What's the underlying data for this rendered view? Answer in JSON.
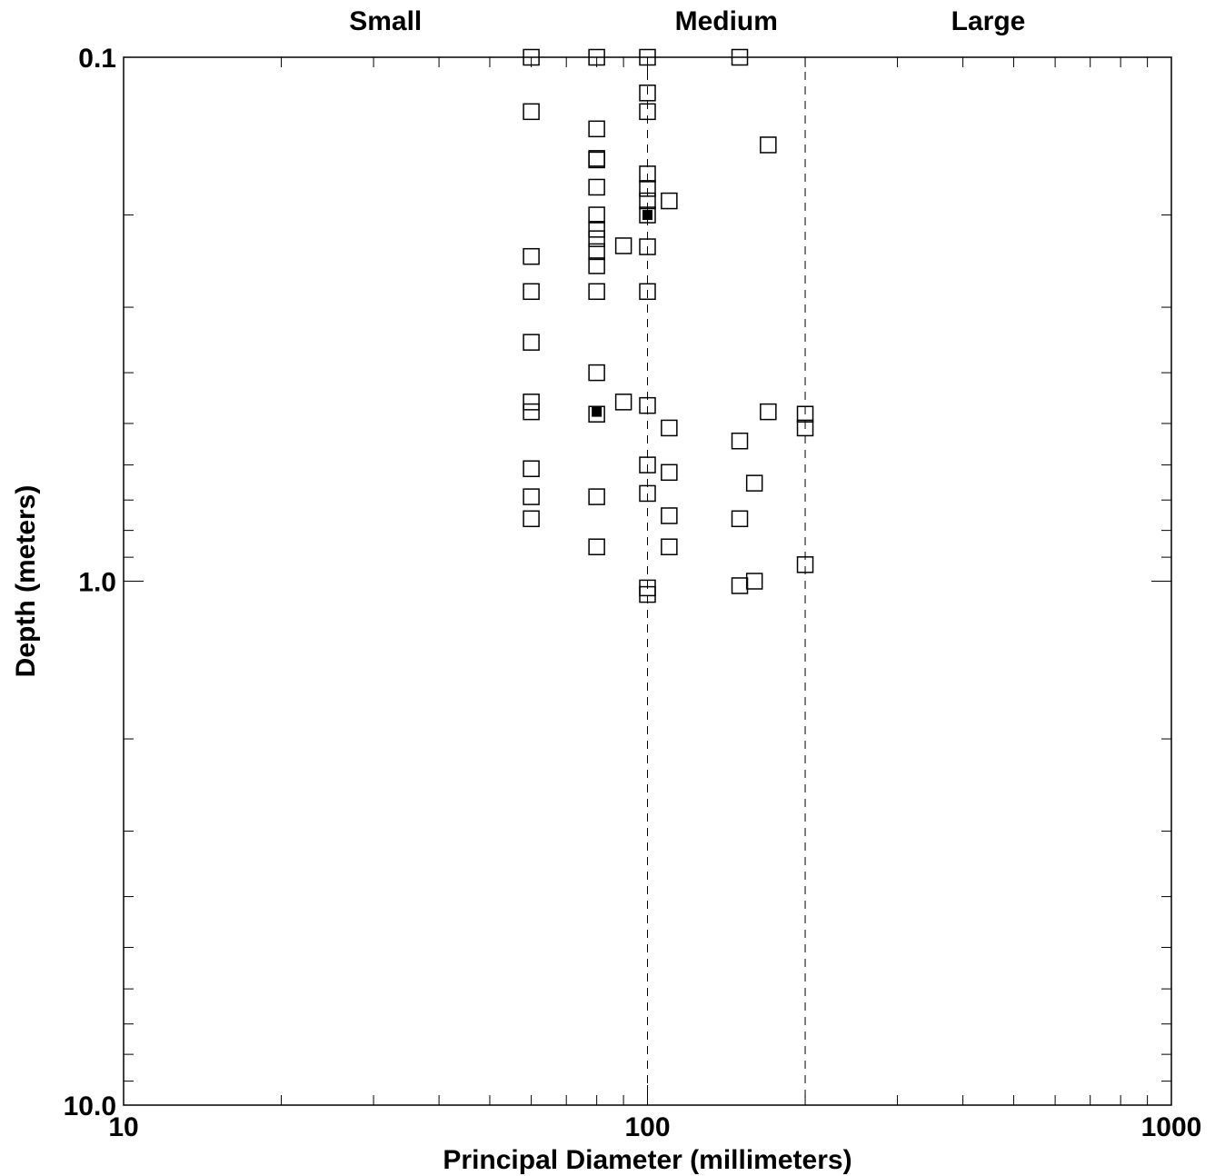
{
  "chart_data": {
    "type": "scatter",
    "title": "",
    "xlabel": "Principal Diameter (millimeters)",
    "ylabel": "Depth (meters)",
    "xscale": "log",
    "yscale": "log",
    "xlim": [
      10,
      1000
    ],
    "ylim": [
      0.1,
      10.0
    ],
    "y_inverted": true,
    "x_tick_labels": [
      "10",
      "100",
      "1000"
    ],
    "y_tick_labels": [
      "0.1",
      "1.0",
      "10.0"
    ],
    "grid": false,
    "size_classes": [
      "Small",
      "Medium",
      "Large"
    ],
    "class_boundaries_mm": [
      100,
      200
    ],
    "marker": "open-square",
    "points": [
      {
        "x": 60,
        "y": 0.1
      },
      {
        "x": 80,
        "y": 0.1
      },
      {
        "x": 100,
        "y": 0.1
      },
      {
        "x": 150,
        "y": 0.1
      },
      {
        "x": 100,
        "y": 0.117
      },
      {
        "x": 60,
        "y": 0.127
      },
      {
        "x": 100,
        "y": 0.127
      },
      {
        "x": 80,
        "y": 0.137
      },
      {
        "x": 170,
        "y": 0.147
      },
      {
        "x": 80,
        "y": 0.156
      },
      {
        "x": 80,
        "y": 0.157
      },
      {
        "x": 100,
        "y": 0.167
      },
      {
        "x": 100,
        "y": 0.178
      },
      {
        "x": 80,
        "y": 0.177
      },
      {
        "x": 100,
        "y": 0.188
      },
      {
        "x": 110,
        "y": 0.188
      },
      {
        "x": 80,
        "y": 0.2
      },
      {
        "x": 100,
        "y": 0.2
      },
      {
        "x": 80,
        "y": 0.213
      },
      {
        "x": 80,
        "y": 0.222
      },
      {
        "x": 90,
        "y": 0.229
      },
      {
        "x": 100,
        "y": 0.23
      },
      {
        "x": 80,
        "y": 0.235
      },
      {
        "x": 60,
        "y": 0.24
      },
      {
        "x": 80,
        "y": 0.25
      },
      {
        "x": 60,
        "y": 0.28
      },
      {
        "x": 80,
        "y": 0.28
      },
      {
        "x": 100,
        "y": 0.28
      },
      {
        "x": 60,
        "y": 0.35
      },
      {
        "x": 80,
        "y": 0.4
      },
      {
        "x": 60,
        "y": 0.455
      },
      {
        "x": 90,
        "y": 0.455
      },
      {
        "x": 100,
        "y": 0.462
      },
      {
        "x": 60,
        "y": 0.475
      },
      {
        "x": 80,
        "y": 0.48
      },
      {
        "x": 170,
        "y": 0.475
      },
      {
        "x": 200,
        "y": 0.48
      },
      {
        "x": 200,
        "y": 0.51
      },
      {
        "x": 110,
        "y": 0.51
      },
      {
        "x": 150,
        "y": 0.54
      },
      {
        "x": 100,
        "y": 0.6
      },
      {
        "x": 60,
        "y": 0.61
      },
      {
        "x": 110,
        "y": 0.62
      },
      {
        "x": 160,
        "y": 0.65
      },
      {
        "x": 60,
        "y": 0.69
      },
      {
        "x": 80,
        "y": 0.69
      },
      {
        "x": 100,
        "y": 0.68
      },
      {
        "x": 110,
        "y": 0.75
      },
      {
        "x": 60,
        "y": 0.76
      },
      {
        "x": 150,
        "y": 0.76
      },
      {
        "x": 80,
        "y": 0.86
      },
      {
        "x": 110,
        "y": 0.86
      },
      {
        "x": 200,
        "y": 0.93
      },
      {
        "x": 160,
        "y": 1.0
      },
      {
        "x": 150,
        "y": 1.02
      },
      {
        "x": 100,
        "y": 1.03
      },
      {
        "x": 100,
        "y": 1.06
      }
    ],
    "filled_points": [
      {
        "x": 100,
        "y": 0.2
      },
      {
        "x": 80,
        "y": 0.475
      }
    ]
  }
}
